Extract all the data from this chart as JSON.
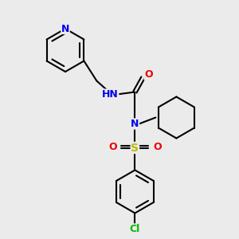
{
  "background_color": "#ebebeb",
  "bond_color": "#000000",
  "atom_colors": {
    "N": "#0000ee",
    "O": "#ee0000",
    "S": "#bbbb00",
    "Cl": "#00bb00",
    "H": "#777777",
    "C": "#000000"
  },
  "figsize": [
    3.0,
    3.0
  ],
  "dpi": 100
}
